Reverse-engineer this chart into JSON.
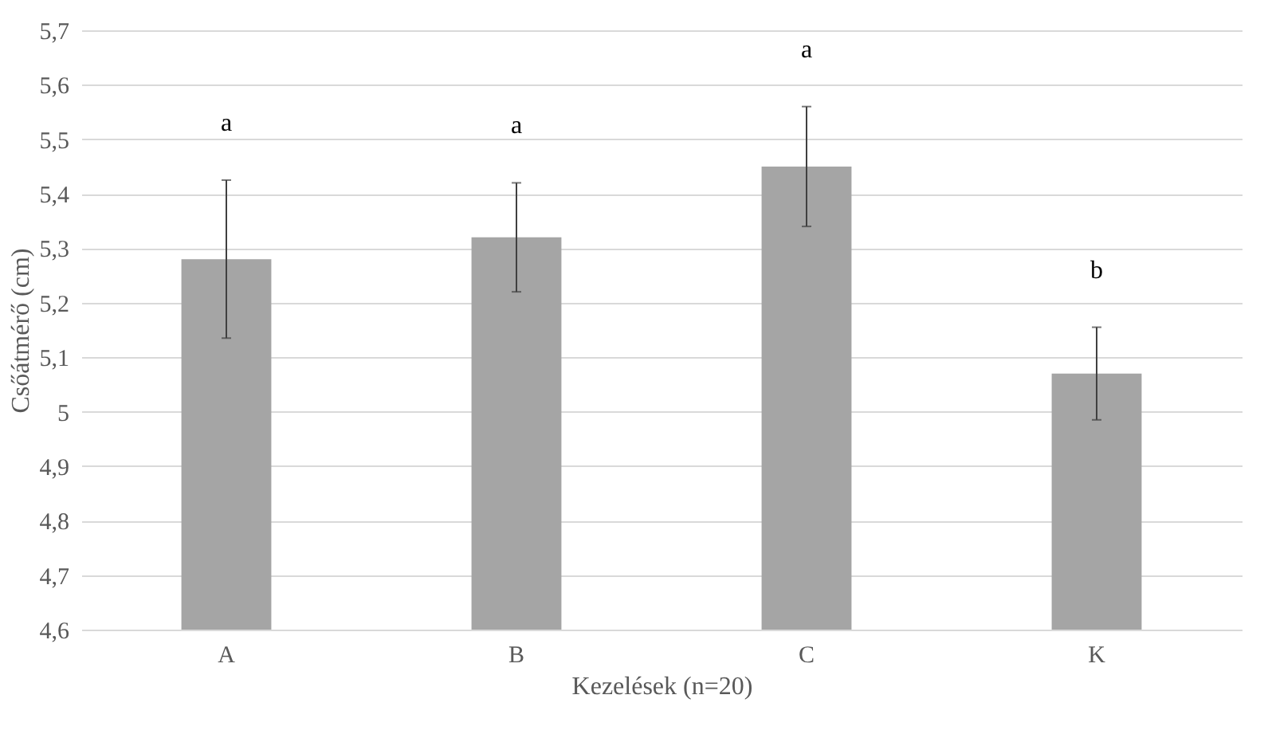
{
  "chart_data": {
    "type": "bar",
    "xlabel": "Kezelések (n=20)",
    "ylabel": "Csőátmérő (cm)",
    "categories": [
      "A",
      "B",
      "C",
      "K"
    ],
    "values": [
      5.28,
      5.32,
      5.45,
      5.07
    ],
    "errors": [
      0.145,
      0.1,
      0.11,
      0.085
    ],
    "color": "#a5a5a5",
    "ylim": [
      4.6,
      5.7
    ],
    "yticks": [
      {
        "value": 4.6,
        "label": "4,6"
      },
      {
        "value": 4.7,
        "label": "4,7"
      },
      {
        "value": 4.8,
        "label": "4,8"
      },
      {
        "value": 4.9,
        "label": "4,9"
      },
      5,
      {
        "value": 5.1,
        "label": "5,1"
      },
      {
        "value": 5.2,
        "label": "5,2"
      },
      {
        "value": 5.3,
        "label": "5,3"
      },
      {
        "value": 5.4,
        "label": "5,4"
      },
      {
        "value": 5.5,
        "label": "5,5"
      },
      {
        "value": 5.6,
        "label": "5,6"
      },
      {
        "value": 5.7,
        "label": "5,7"
      }
    ],
    "grid": true,
    "annotations": [
      "a",
      "a",
      "a",
      "b"
    ]
  }
}
